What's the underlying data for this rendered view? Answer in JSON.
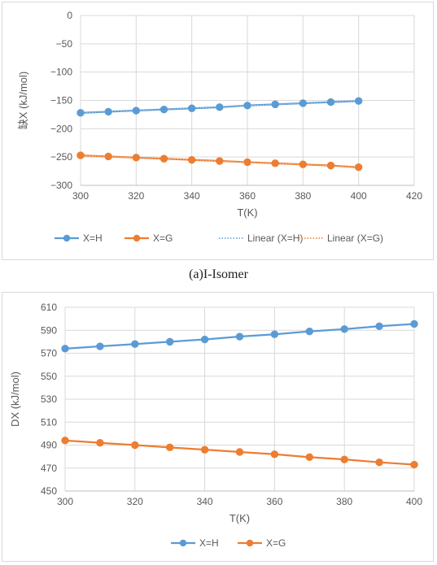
{
  "captions": {
    "panel_a": "(a)I-Isomer"
  },
  "colors": {
    "h": "#5b9bd5",
    "g": "#ed7d31",
    "grid": "#d9d9d9",
    "axis": "#bfbfbf"
  },
  "chart_data": [
    {
      "type": "line",
      "title": "",
      "xlabel": "T(K)",
      "ylabel": "缺X (kJ/mol)",
      "xlim": [
        300,
        420
      ],
      "ylim": [
        -300,
        0
      ],
      "xticks": [
        300,
        320,
        340,
        360,
        380,
        400,
        420
      ],
      "yticks": [
        0,
        -50,
        -100,
        -150,
        -200,
        -250,
        -300
      ],
      "grid": true,
      "legend_position": "bottom",
      "x": [
        300,
        310,
        320,
        330,
        340,
        350,
        360,
        370,
        380,
        390,
        400
      ],
      "series": [
        {
          "name": "X=H",
          "color": "#5b9bd5",
          "values": [
            -172,
            -170,
            -168,
            -166,
            -164,
            -162,
            -159,
            -157,
            -155,
            -153,
            -151
          ]
        },
        {
          "name": "X=G",
          "color": "#ed7d31",
          "values": [
            -247,
            -249,
            -251,
            -253,
            -255,
            -257,
            -259,
            -261,
            -263,
            -265,
            -268
          ]
        }
      ],
      "trendlines": [
        {
          "name": "Linear (X=H)",
          "of": "X=H",
          "style": "dotted",
          "color": "#5b9bd5"
        },
        {
          "name": "Linear (X=G)",
          "of": "X=G",
          "style": "dotted",
          "color": "#ed7d31"
        }
      ]
    },
    {
      "type": "line",
      "title": "",
      "xlabel": "T(K)",
      "ylabel": "DX (kJ/mol)",
      "xlim": [
        300,
        400
      ],
      "ylim": [
        450,
        610
      ],
      "xticks": [
        300,
        320,
        340,
        360,
        380,
        400
      ],
      "yticks": [
        450,
        470,
        490,
        510,
        530,
        550,
        570,
        590,
        610
      ],
      "grid": true,
      "legend_position": "bottom",
      "x": [
        300,
        310,
        320,
        330,
        340,
        350,
        360,
        370,
        380,
        390,
        400
      ],
      "series": [
        {
          "name": "X=H",
          "color": "#5b9bd5",
          "values": [
            574,
            576,
            578,
            580,
            582,
            584.5,
            586.5,
            589,
            591,
            593.5,
            595.5
          ]
        },
        {
          "name": "X=G",
          "color": "#ed7d31",
          "values": [
            494,
            492,
            490,
            488,
            486,
            484,
            482,
            479.5,
            477.5,
            475,
            473
          ]
        }
      ]
    }
  ]
}
